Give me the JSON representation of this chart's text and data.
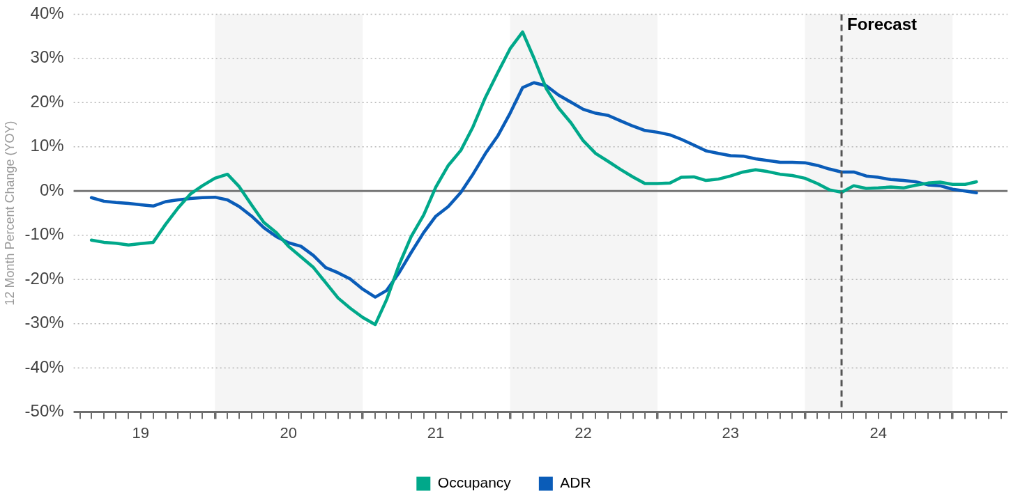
{
  "chart_data": {
    "type": "line",
    "ylabel": "12 Month Percent Change (YOY)",
    "x": [
      "2019-03",
      "2019-04",
      "2019-05",
      "2019-06",
      "2019-07",
      "2019-08",
      "2019-09",
      "2019-10",
      "2019-11",
      "2019-12",
      "2020-01",
      "2020-02",
      "2020-03",
      "2020-04",
      "2020-05",
      "2020-06",
      "2020-07",
      "2020-08",
      "2020-09",
      "2020-10",
      "2020-11",
      "2020-12",
      "2021-01",
      "2021-02",
      "2021-03",
      "2021-04",
      "2021-05",
      "2021-06",
      "2021-07",
      "2021-08",
      "2021-09",
      "2021-10",
      "2021-11",
      "2021-12",
      "2022-01",
      "2022-02",
      "2022-03",
      "2022-04",
      "2022-05",
      "2022-06",
      "2022-07",
      "2022-08",
      "2022-09",
      "2022-10",
      "2022-11",
      "2022-12",
      "2023-01",
      "2023-02",
      "2023-03",
      "2023-04",
      "2023-05",
      "2023-06",
      "2023-07",
      "2023-08",
      "2023-09",
      "2023-10",
      "2023-11",
      "2023-12",
      "2024-01",
      "2024-02",
      "2024-03",
      "2024-04",
      "2024-05",
      "2024-06",
      "2024-07",
      "2024-08",
      "2024-09",
      "2024-10",
      "2024-11",
      "2024-12",
      "2025-01",
      "2025-02",
      "2025-03"
    ],
    "series": [
      {
        "name": "Occupancy",
        "color": "#00a88a",
        "values": [
          -11.1,
          -11.6,
          -11.8,
          -12.2,
          -11.9,
          -11.6,
          -7.5,
          -3.9,
          -0.7,
          1.2,
          2.9,
          3.8,
          1.0,
          -3.2,
          -7.1,
          -9.4,
          -12.5,
          -14.9,
          -17.3,
          -20.7,
          -24.2,
          -26.5,
          -28.6,
          -30.2,
          -24.6,
          -16.7,
          -10.3,
          -5.4,
          0.9,
          5.8,
          9.2,
          14.5,
          21.2,
          26.7,
          32.2,
          36.0,
          30.1,
          23.1,
          18.8,
          15.4,
          11.4,
          8.5,
          6.7,
          4.9,
          3.2,
          1.7,
          1.7,
          1.8,
          3.1,
          3.2,
          2.4,
          2.7,
          3.4,
          4.3,
          4.8,
          4.4,
          3.8,
          3.5,
          2.9,
          1.7,
          0.3,
          -0.3,
          1.2,
          0.6,
          0.7,
          0.9,
          0.7,
          1.3,
          1.8,
          2.0,
          1.5,
          1.5,
          2.1
        ]
      },
      {
        "name": "ADR",
        "color": "#0a5cb8",
        "values": [
          -1.5,
          -2.3,
          -2.6,
          -2.8,
          -3.1,
          -3.4,
          -2.4,
          -2.0,
          -1.7,
          -1.5,
          -1.4,
          -2.0,
          -3.5,
          -5.7,
          -8.3,
          -10.3,
          -11.7,
          -12.5,
          -14.6,
          -17.3,
          -18.5,
          -19.9,
          -22.2,
          -24.0,
          -22.5,
          -18.5,
          -13.9,
          -9.4,
          -5.7,
          -3.5,
          -0.3,
          3.8,
          8.5,
          12.4,
          17.6,
          23.4,
          24.5,
          23.8,
          21.7,
          20.1,
          18.5,
          17.6,
          17.1,
          15.9,
          14.7,
          13.7,
          13.3,
          12.7,
          11.7,
          10.4,
          9.1,
          8.5,
          8.0,
          7.9,
          7.3,
          6.9,
          6.5,
          6.5,
          6.4,
          5.8,
          5.0,
          4.3,
          4.3,
          3.4,
          3.1,
          2.6,
          2.4,
          2.1,
          1.4,
          1.2,
          0.4,
          0.0,
          -0.4
        ]
      }
    ],
    "xlim": [
      "2019-01-16",
      "2025-05-17"
    ],
    "xticks": [
      {
        "value": "2019-02",
        "label": null
      },
      {
        "value": "2019-03",
        "label": null
      },
      {
        "value": "2019-04",
        "label": null
      },
      {
        "value": "2019-05",
        "label": null
      },
      {
        "value": "2019-06",
        "label": null
      },
      {
        "value": "2019-07",
        "label": "19"
      },
      {
        "value": "2019-08",
        "label": null
      },
      {
        "value": "2019-09",
        "label": null
      },
      {
        "value": "2019-10",
        "label": null
      },
      {
        "value": "2019-11",
        "label": null
      },
      {
        "value": "2019-12",
        "label": null
      },
      {
        "value": "2020-01",
        "label": null
      },
      {
        "value": "2020-02",
        "label": null
      },
      {
        "value": "2020-03",
        "label": null
      },
      {
        "value": "2020-04",
        "label": null
      },
      {
        "value": "2020-05",
        "label": null
      },
      {
        "value": "2020-06",
        "label": null
      },
      {
        "value": "2020-07",
        "label": "20"
      },
      {
        "value": "2020-08",
        "label": null
      },
      {
        "value": "2020-09",
        "label": null
      },
      {
        "value": "2020-10",
        "label": null
      },
      {
        "value": "2020-11",
        "label": null
      },
      {
        "value": "2020-12",
        "label": null
      },
      {
        "value": "2021-01",
        "label": null
      },
      {
        "value": "2021-02",
        "label": null
      },
      {
        "value": "2021-03",
        "label": null
      },
      {
        "value": "2021-04",
        "label": null
      },
      {
        "value": "2021-05",
        "label": null
      },
      {
        "value": "2021-06",
        "label": null
      },
      {
        "value": "2021-07",
        "label": "21"
      },
      {
        "value": "2021-08",
        "label": null
      },
      {
        "value": "2021-09",
        "label": null
      },
      {
        "value": "2021-10",
        "label": null
      },
      {
        "value": "2021-11",
        "label": null
      },
      {
        "value": "2021-12",
        "label": null
      },
      {
        "value": "2022-01",
        "label": null
      },
      {
        "value": "2022-02",
        "label": null
      },
      {
        "value": "2022-03",
        "label": null
      },
      {
        "value": "2022-04",
        "label": null
      },
      {
        "value": "2022-05",
        "label": null
      },
      {
        "value": "2022-06",
        "label": null
      },
      {
        "value": "2022-07",
        "label": "22"
      },
      {
        "value": "2022-08",
        "label": null
      },
      {
        "value": "2022-09",
        "label": null
      },
      {
        "value": "2022-10",
        "label": null
      },
      {
        "value": "2022-11",
        "label": null
      },
      {
        "value": "2022-12",
        "label": null
      },
      {
        "value": "2023-01",
        "label": null
      },
      {
        "value": "2023-02",
        "label": null
      },
      {
        "value": "2023-03",
        "label": null
      },
      {
        "value": "2023-04",
        "label": null
      },
      {
        "value": "2023-05",
        "label": null
      },
      {
        "value": "2023-06",
        "label": null
      },
      {
        "value": "2023-07",
        "label": "23"
      },
      {
        "value": "2023-08",
        "label": null
      },
      {
        "value": "2023-09",
        "label": null
      },
      {
        "value": "2023-10",
        "label": null
      },
      {
        "value": "2023-11",
        "label": null
      },
      {
        "value": "2023-12",
        "label": null
      },
      {
        "value": "2024-01",
        "label": null
      },
      {
        "value": "2024-02",
        "label": null
      },
      {
        "value": "2024-03",
        "label": null
      },
      {
        "value": "2024-04",
        "label": null
      },
      {
        "value": "2024-05",
        "label": null
      },
      {
        "value": "2024-06",
        "label": null
      },
      {
        "value": "2024-07",
        "label": "24"
      },
      {
        "value": "2024-08",
        "label": null
      },
      {
        "value": "2024-09",
        "label": null
      },
      {
        "value": "2024-10",
        "label": null
      },
      {
        "value": "2024-11",
        "label": null
      },
      {
        "value": "2024-12",
        "label": null
      },
      {
        "value": "2025-01",
        "label": null
      },
      {
        "value": "2025-02",
        "label": null
      },
      {
        "value": "2025-03",
        "label": null
      },
      {
        "value": "2025-04",
        "label": null
      },
      {
        "value": "2025-05",
        "label": null
      }
    ],
    "ylim": [
      -50,
      40
    ],
    "yticks": [
      {
        "value": -50,
        "label": "-50%"
      },
      {
        "value": -40,
        "label": "-40%"
      },
      {
        "value": -30,
        "label": "-30%"
      },
      {
        "value": -20,
        "label": "-20%"
      },
      {
        "value": -10,
        "label": "-10%"
      },
      {
        "value": 0,
        "label": "0%"
      },
      {
        "value": 10,
        "label": "10%"
      },
      {
        "value": 20,
        "label": "20%"
      },
      {
        "value": 30,
        "label": "30%"
      },
      {
        "value": 40,
        "label": "40%"
      }
    ],
    "bands": [
      {
        "axis": "x",
        "from": "2020-01",
        "to": "2021-01",
        "color": "#f5f5f5"
      },
      {
        "axis": "x",
        "from": "2022-01",
        "to": "2023-01",
        "color": "#f5f5f5"
      },
      {
        "axis": "x",
        "from": "2024-01",
        "to": "2025-01",
        "color": "#f5f5f5"
      }
    ],
    "ref_lines": [
      {
        "axis": "y",
        "value": 0,
        "color": "#777777",
        "line_style": "solid"
      },
      {
        "axis": "x",
        "value": "2024-04",
        "label": "Forecast",
        "color": "#555555",
        "line_style": "dashed"
      }
    ],
    "grid": "y",
    "legend": "bottom",
    "marker": "none",
    "line_style": "solid"
  }
}
